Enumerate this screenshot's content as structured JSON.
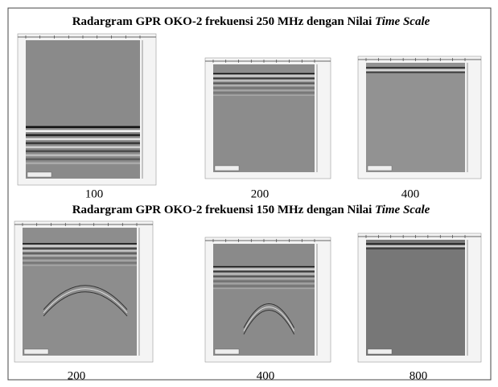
{
  "sections": [
    {
      "title": {
        "text": "Radargram GPR OKO-2 frekuensi 250 MHz dengan Nilai ",
        "italic": "Time Scale"
      },
      "panels": [
        {
          "label": "100"
        },
        {
          "label": "200"
        },
        {
          "label": "400"
        }
      ]
    },
    {
      "title": {
        "text": "Radargram GPR OKO-2 frekuensi 150 MHz dengan Nilai ",
        "italic": "Time Scale"
      },
      "panels": [
        {
          "label": "200"
        },
        {
          "label": "400"
        },
        {
          "label": "800"
        }
      ]
    }
  ]
}
